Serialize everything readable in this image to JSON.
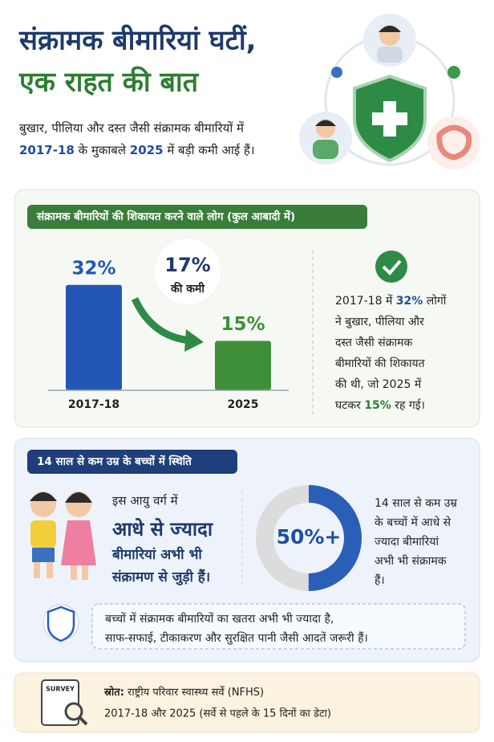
{
  "header": {
    "title_line1": "संक्रामक बीमारियां घटीं,",
    "title_line2": "एक राहत की बात",
    "subtitle_line1": "बुखार, पीलिया और दस्त जैसी संक्रामक बीमारियों में",
    "subtitle_year1": "2017-18",
    "subtitle_mid": " के मुकाबले ",
    "subtitle_year2": "2025",
    "subtitle_end": " में बड़ी कमी आई हैं।"
  },
  "section1": {
    "label": "संक्रामक बीमारियों की शिकायत करने वाले लोग (कुल आबादी में)",
    "chart": {
      "type": "bar",
      "categories": [
        "2017-18",
        "2025"
      ],
      "values": [
        32,
        15
      ],
      "value_labels": [
        "32%",
        "15%"
      ],
      "colors": [
        "#2456b5",
        "#3f8f3a"
      ]
    },
    "change_value": "17%",
    "change_text": "की कमी",
    "side_l1a": "2017-18 में ",
    "side_l1b": "32%",
    "side_l1c": " लोगों",
    "side_l2": "ने बुखार, पीलिया और",
    "side_l3": "दस्त जैसी संक्रामक",
    "side_l4": "बीमारियों की शिकायत",
    "side_l5": "की थी, जो 2025 में",
    "side_l6a": "घटकर ",
    "side_l6b": "15%",
    "side_l6c": " रह गई।"
  },
  "section2": {
    "label": "14 साल से कम उम्र के बच्चों में स्थिति",
    "left_l1": "इस आयु वर्ग में",
    "left_l2": "आधे से ज्यादा",
    "left_l3": "बीमारियां अभी भी",
    "left_l4": "संक्रामण से जुड़ी हैं।",
    "donut": {
      "value": 50,
      "label": "50%+",
      "color": "#2a5fb8",
      "track": "#dcdcdc"
    },
    "right_lines": [
      "14 साल से कम उम्र",
      "के बच्चों में आधे से",
      "ज्यादा बीमारियां",
      "अभी भी संक्रामक",
      "हैं।"
    ],
    "note_lines": [
      "बच्चों में संक्रामक बीमारियों का खतरा अभी भी ज्यादा है,",
      "साफ-सफाई, टीकाकरण और सुरक्षित पानी जैसी आदतें जरूरी हैं।"
    ]
  },
  "footer": {
    "icon_label": "SURVEY",
    "source_label": "स्रोत:",
    "source_text": " राष्ट्रीय परिवार स्वास्थ्य सर्वे (NFHS)",
    "line2": "2017-18 और 2025 (सर्वे से पहले के 15 दिनों का डेटा)"
  }
}
